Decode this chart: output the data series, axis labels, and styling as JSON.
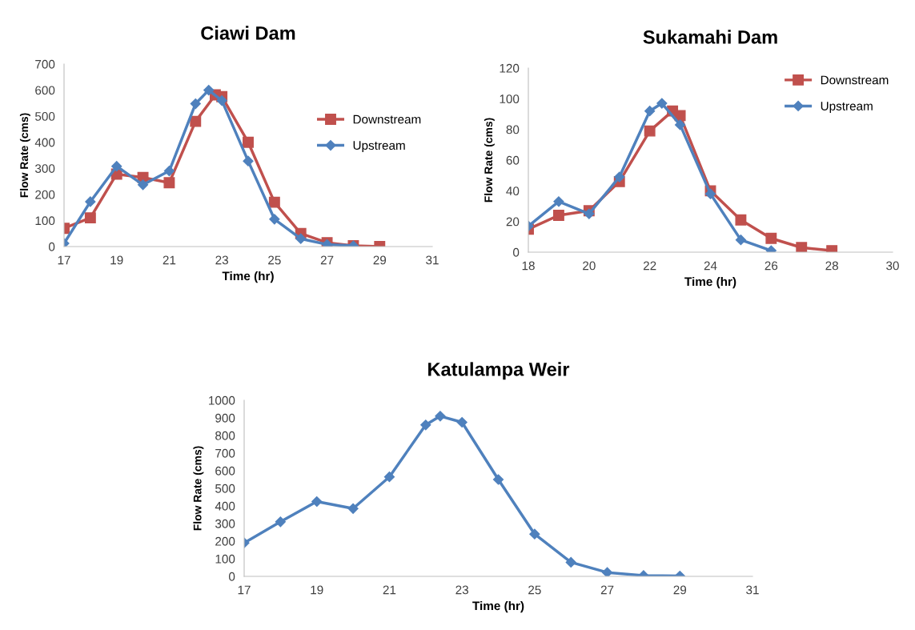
{
  "chart_data": [
    {
      "type": "line",
      "title": "Ciawi Dam",
      "xlabel": "Time (hr)",
      "ylabel": "Flow Rate (cms)",
      "xlim": [
        17,
        31
      ],
      "xticks": [
        17,
        19,
        21,
        23,
        25,
        27,
        29,
        31
      ],
      "ylim": [
        0,
        700
      ],
      "yticks": [
        0,
        100,
        200,
        300,
        400,
        500,
        600,
        700
      ],
      "grid": false,
      "legend": "right",
      "series": [
        {
          "name": "Downstream",
          "color": "#c0504d",
          "marker": "square",
          "x": [
            17,
            18,
            19,
            20,
            21,
            22,
            22.75,
            23,
            24,
            25,
            26,
            27,
            28,
            29
          ],
          "values": [
            70,
            110,
            278,
            265,
            245,
            480,
            582,
            575,
            400,
            170,
            50,
            15,
            3,
            0
          ]
        },
        {
          "name": "Upstream",
          "color": "#4f81bd",
          "marker": "diamond",
          "x": [
            17,
            18,
            19,
            20,
            21,
            22,
            22.5,
            23,
            24,
            25,
            26,
            27,
            28
          ],
          "values": [
            12,
            172,
            308,
            237,
            290,
            548,
            600,
            560,
            328,
            105,
            30,
            8,
            3
          ]
        }
      ]
    },
    {
      "type": "line",
      "title": "Sukamahi Dam",
      "xlabel": "Time (hr)",
      "ylabel": "Flow Rate (cms)",
      "xlim": [
        18,
        30
      ],
      "xticks": [
        18,
        20,
        22,
        24,
        26,
        28,
        30
      ],
      "ylim": [
        0,
        120
      ],
      "yticks": [
        0,
        20,
        40,
        60,
        80,
        100,
        120
      ],
      "grid": false,
      "legend": "top right",
      "series": [
        {
          "name": "Downstream",
          "color": "#c0504d",
          "marker": "square",
          "x": [
            18,
            19,
            20,
            21,
            22,
            22.75,
            23,
            24,
            25,
            26,
            27,
            28
          ],
          "values": [
            15,
            24,
            27,
            46,
            79,
            92,
            89,
            40,
            21,
            9,
            3,
            1
          ]
        },
        {
          "name": "Upstream",
          "color": "#4f81bd",
          "marker": "diamond",
          "x": [
            18,
            19,
            20,
            21,
            22,
            22.4,
            23,
            24,
            25,
            26
          ],
          "values": [
            17,
            33,
            25,
            49,
            92,
            97,
            83,
            38,
            8,
            1
          ]
        }
      ]
    },
    {
      "type": "line",
      "title": "Katulampa Weir",
      "xlabel": "Time (hr)",
      "ylabel": "Flow Rate (cms)",
      "xlim": [
        17,
        31
      ],
      "xticks": [
        17,
        19,
        21,
        23,
        25,
        27,
        29,
        31
      ],
      "ylim": [
        0,
        1000
      ],
      "yticks": [
        0,
        100,
        200,
        300,
        400,
        500,
        600,
        700,
        800,
        900,
        1000
      ],
      "grid": false,
      "series": [
        {
          "color": "#4f81bd",
          "marker": "diamond",
          "x": [
            17,
            18,
            19,
            20,
            21,
            22,
            22.4,
            23,
            24,
            25,
            26,
            27,
            28,
            29
          ],
          "values": [
            190,
            310,
            425,
            385,
            565,
            860,
            910,
            875,
            550,
            240,
            80,
            22,
            5,
            2
          ]
        }
      ]
    }
  ]
}
